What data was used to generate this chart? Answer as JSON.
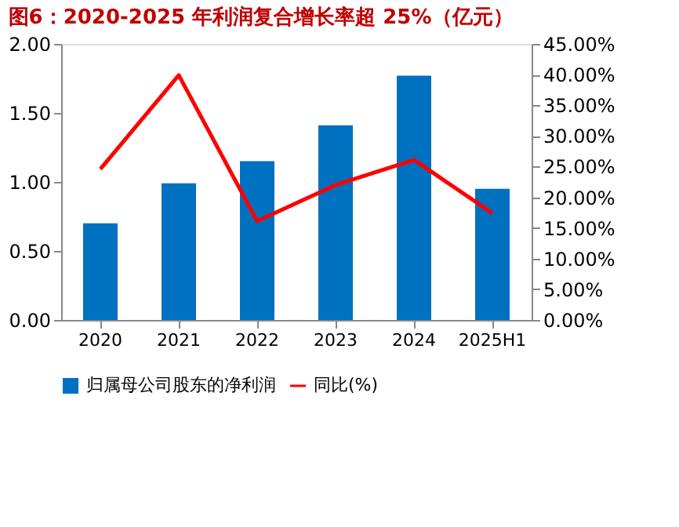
{
  "chart_data": {
    "type": "bar",
    "title": "图6：2020-2025 年利润复合增长率超 25%（亿元）",
    "categories": [
      "2020",
      "2021",
      "2022",
      "2023",
      "2024",
      "2025H1"
    ],
    "series": [
      {
        "name": "归属母公司股东的净利润",
        "color": "#0070c0",
        "values": [
          0.7,
          0.99,
          1.15,
          1.41,
          1.77,
          0.95
        ]
      },
      {
        "name": "同比(%)",
        "type": "line",
        "axis": "y2",
        "color": "#ff0000",
        "values": [
          24.6,
          39.9,
          16.1,
          22.0,
          26.1,
          17.4
        ]
      }
    ],
    "ylim": [
      0,
      2
    ],
    "yticks": [
      {
        "value": 0,
        "label": "0.00"
      },
      {
        "value": 0.5,
        "label": "0.50"
      },
      {
        "value": 1,
        "label": "1.00"
      },
      {
        "value": 1.5,
        "label": "1.50"
      },
      {
        "value": 2,
        "label": "2.00"
      }
    ],
    "y2lim": [
      0,
      45
    ],
    "y2ticks": [
      {
        "value": 0,
        "label": "0.00%"
      },
      {
        "value": 5,
        "label": "5.00%"
      },
      {
        "value": 10,
        "label": "10.00%"
      },
      {
        "value": 15,
        "label": "15.00%"
      },
      {
        "value": 20,
        "label": "20.00%"
      },
      {
        "value": 25,
        "label": "25.00%"
      },
      {
        "value": 30,
        "label": "30.00%"
      },
      {
        "value": 35,
        "label": "35.00%"
      },
      {
        "value": 40,
        "label": "40.00%"
      },
      {
        "value": 45,
        "label": "45.00%"
      }
    ],
    "legend": "bottom",
    "grid": false
  }
}
